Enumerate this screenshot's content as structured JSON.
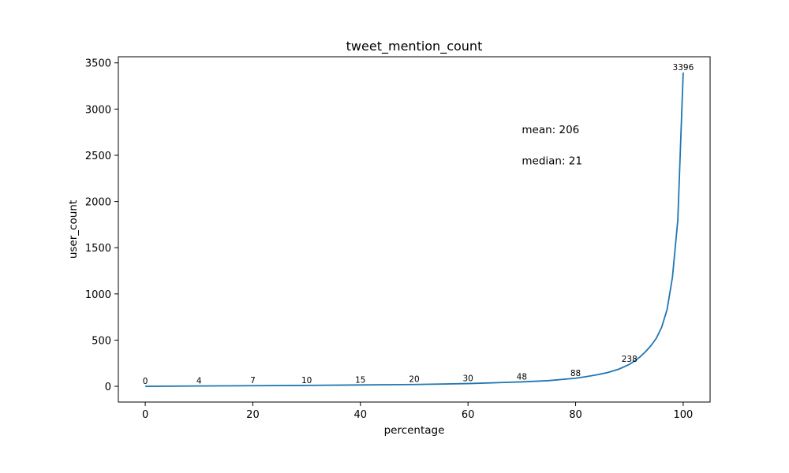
{
  "chart_data": {
    "type": "line",
    "title": "tweet_mention_count",
    "xlabel": "percentage",
    "ylabel": "user_count",
    "xlim": [
      -5,
      105
    ],
    "ylim": [
      -170,
      3566
    ],
    "x_ticks": [
      0,
      20,
      40,
      60,
      80,
      100
    ],
    "y_ticks": [
      0,
      500,
      1000,
      1500,
      2000,
      2500,
      3000,
      3500
    ],
    "grid": false,
    "line_color": "#1f77b4",
    "series": [
      {
        "x": [
          0,
          10,
          20,
          30,
          40,
          50,
          60,
          70,
          75,
          80,
          82,
          84,
          86,
          88,
          90,
          91,
          92,
          93,
          94,
          95,
          96,
          97,
          98,
          99,
          100
        ],
        "y": [
          0,
          4,
          7,
          10,
          15,
          20,
          30,
          48,
          62,
          88,
          105,
          125,
          150,
          185,
          238,
          275,
          320,
          375,
          440,
          520,
          640,
          830,
          1180,
          1800,
          3396
        ]
      }
    ],
    "data_labels": [
      {
        "x": 0,
        "y": 0,
        "text": "0"
      },
      {
        "x": 10,
        "y": 4,
        "text": "4"
      },
      {
        "x": 20,
        "y": 7,
        "text": "7"
      },
      {
        "x": 30,
        "y": 10,
        "text": "10"
      },
      {
        "x": 40,
        "y": 15,
        "text": "15"
      },
      {
        "x": 50,
        "y": 20,
        "text": "20"
      },
      {
        "x": 60,
        "y": 30,
        "text": "30"
      },
      {
        "x": 70,
        "y": 48,
        "text": "48"
      },
      {
        "x": 80,
        "y": 88,
        "text": "88"
      },
      {
        "x": 90,
        "y": 238,
        "text": "238"
      },
      {
        "x": 100,
        "y": 3396,
        "text": "3396"
      }
    ],
    "annotations": [
      {
        "x": 70,
        "y": 2740,
        "text": "mean: 206"
      },
      {
        "x": 70,
        "y": 2400,
        "text": "median: 21"
      }
    ]
  }
}
